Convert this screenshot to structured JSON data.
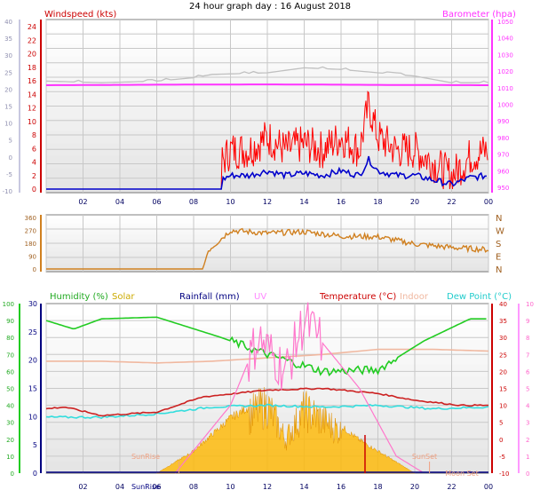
{
  "page_title": "24 hour graph day : 16 August 2018",
  "colors": {
    "wind_gust": "#ff0000",
    "wind_avg": "#0000cc",
    "barometer": "#ff33ff",
    "temp_indoor_old": "#c0c0c0",
    "direction": "#d08020",
    "humidity": "#22cc22",
    "solar": "#ffb800",
    "rainfall": "#000080",
    "uv": "#ff99ff",
    "temperature": "#cc0000",
    "indoor": "#f0b8a0",
    "dewpoint": "#33dddd",
    "sun_marker": "#f0a080"
  },
  "chart_data": [
    {
      "type": "line",
      "panel": "wind",
      "title": "24 hour graph day : 16 August 2018",
      "left_label": "Windspeed (kts)",
      "right_label": "Barometer (hpa)",
      "x_ticks": [
        "02",
        "04",
        "06",
        "08",
        "10",
        "12",
        "14",
        "16",
        "18",
        "20",
        "22",
        "00"
      ],
      "left_ticks_outer": [
        "40",
        "35",
        "30",
        "25",
        "20",
        "15",
        "10",
        "5",
        "0",
        "-5",
        "-10"
      ],
      "left_ticks": [
        "24",
        "22",
        "20",
        "18",
        "16",
        "14",
        "12",
        "10",
        "8",
        "6",
        "4",
        "2",
        "0"
      ],
      "right_ticks": [
        "1050",
        "1040",
        "1030",
        "1020",
        "1010",
        "1000",
        "990",
        "980",
        "970",
        "960",
        "950"
      ],
      "ylim_left": [
        0,
        25
      ],
      "ylim_right": [
        950,
        1050
      ],
      "series": [
        {
          "name": "Windspeed (kts)",
          "x": [
            0,
            9.5,
            9.5,
            10,
            11,
            12,
            13,
            14,
            15,
            16,
            17,
            17.5,
            18,
            19,
            20,
            21,
            22,
            23,
            24
          ],
          "values": [
            0,
            0,
            4,
            6,
            6,
            8,
            6,
            7,
            6,
            8,
            6,
            13,
            8,
            6,
            6,
            4,
            2,
            5,
            6
          ]
        },
        {
          "name": "Barometer (hpa)",
          "x": [
            0,
            6,
            12,
            18,
            24
          ],
          "values": [
            1011.5,
            1011.8,
            1012,
            1011.7,
            1011.5
          ]
        }
      ]
    },
    {
      "type": "line",
      "panel": "direction",
      "left_ticks": [
        "360",
        "270",
        "180",
        "90",
        "0"
      ],
      "right_ticks": [
        "N",
        "W",
        "S",
        "E",
        "N"
      ],
      "ylim": [
        0,
        360
      ],
      "x": [
        0,
        8.5,
        8.8,
        10,
        12,
        14,
        16,
        18,
        20,
        22,
        24
      ],
      "values": [
        0,
        0,
        130,
        270,
        250,
        260,
        230,
        225,
        175,
        150,
        135
      ]
    },
    {
      "type": "line",
      "panel": "climate",
      "legend": [
        "Humidity (%)",
        "Solar",
        "Rainfall (mm)",
        "UV",
        "Temperature (°C)",
        "Indoor",
        "Dew Point (°C)"
      ],
      "x_ticks": [
        "02",
        "04",
        "06",
        "08",
        "10",
        "12",
        "14",
        "16",
        "18",
        "20",
        "22",
        "00"
      ],
      "humidity_ticks": [
        "100",
        "90",
        "80",
        "70",
        "60",
        "50",
        "40",
        "30",
        "20",
        "10",
        "0"
      ],
      "rain_ticks": [
        "30",
        "25",
        "20",
        "15",
        "10",
        "5",
        "0"
      ],
      "temp_ticks": [
        "40",
        "35",
        "30",
        "25",
        "20",
        "15",
        "10",
        "5",
        "0",
        "-5",
        "-10"
      ],
      "uv_ticks": [
        "10",
        "9",
        "8",
        "7",
        "6",
        "5",
        "4",
        "3",
        "2",
        "1",
        "0"
      ],
      "ylim_rain": [
        0,
        30
      ],
      "ylim_temp": [
        -10,
        40
      ],
      "series": [
        {
          "name": "Humidity (%)",
          "x": [
            0,
            1.5,
            3,
            6,
            9.5,
            12,
            15,
            18,
            20.5,
            23,
            24
          ],
          "values": [
            90,
            85,
            91,
            92,
            80,
            70,
            60,
            61,
            78,
            91,
            91
          ]
        },
        {
          "name": "Temperature (°C)",
          "x": [
            0,
            1,
            3,
            6,
            8.5,
            12,
            15,
            18,
            20,
            22.5,
            24
          ],
          "values": [
            9,
            9.5,
            7,
            8,
            12.5,
            14.5,
            15,
            13.5,
            11.5,
            10,
            10
          ]
        },
        {
          "name": "Dew Point (°C)",
          "x": [
            0,
            3,
            6,
            9,
            12,
            15,
            18,
            21,
            24
          ],
          "values": [
            6.5,
            6.5,
            7.5,
            9.5,
            10,
            9.5,
            10,
            9,
            9.5
          ]
        },
        {
          "name": "Indoor",
          "x": [
            0,
            3,
            6,
            9,
            12,
            15,
            18,
            21,
            24
          ],
          "values": [
            23,
            23,
            22.5,
            23,
            24,
            25,
            26.5,
            26.5,
            26
          ]
        },
        {
          "name": "Solar",
          "x": [
            6,
            8,
            10,
            12,
            13,
            14,
            15,
            17,
            20
          ],
          "values": [
            0,
            4,
            10,
            14,
            7,
            13,
            11,
            6,
            0
          ]
        },
        {
          "name": "UV",
          "x": [
            7,
            10,
            11.5,
            13,
            14,
            15.5,
            17,
            19,
            20.5
          ],
          "values": [
            0,
            4,
            8,
            6,
            9,
            7,
            5,
            1,
            0
          ]
        },
        {
          "name": "Rainfall (mm)",
          "x": [
            0,
            24
          ],
          "values": [
            0,
            0
          ]
        }
      ],
      "annotations": [
        "SunRise",
        "SunSet",
        "SunRise",
        "Moon Set"
      ]
    }
  ]
}
